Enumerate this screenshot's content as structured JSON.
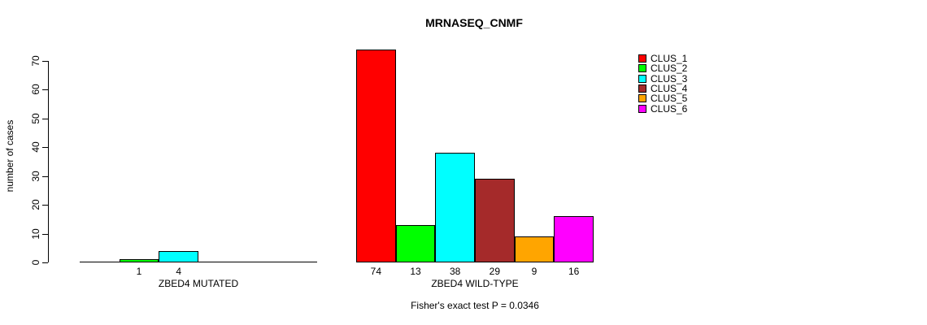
{
  "chart_data": {
    "type": "bar",
    "title": "MRNASEQ_CNMF",
    "ylabel": "number of cases",
    "ylim": [
      0,
      70
    ],
    "yticks": [
      0,
      10,
      20,
      30,
      40,
      50,
      60,
      70
    ],
    "grid": false,
    "legend_position": "right",
    "legend": [
      {
        "label": "CLUS_1",
        "color": "#FF0000"
      },
      {
        "label": "CLUS_2",
        "color": "#00FF00"
      },
      {
        "label": "CLUS_3",
        "color": "#00FFFF"
      },
      {
        "label": "CLUS_4",
        "color": "#A52A2A"
      },
      {
        "label": "CLUS_5",
        "color": "#FFA500"
      },
      {
        "label": "CLUS_6",
        "color": "#FF00FF"
      }
    ],
    "groups": [
      {
        "label": "ZBED4 MUTATED",
        "values": [
          0,
          1,
          4,
          0,
          0,
          0
        ]
      },
      {
        "label": "ZBED4 WILD-TYPE",
        "values": [
          74,
          13,
          38,
          29,
          9,
          16
        ]
      }
    ],
    "note": "zero-value bars are not drawn and not labeled",
    "footnote": "Fisher's exact test P = 0.0346"
  }
}
